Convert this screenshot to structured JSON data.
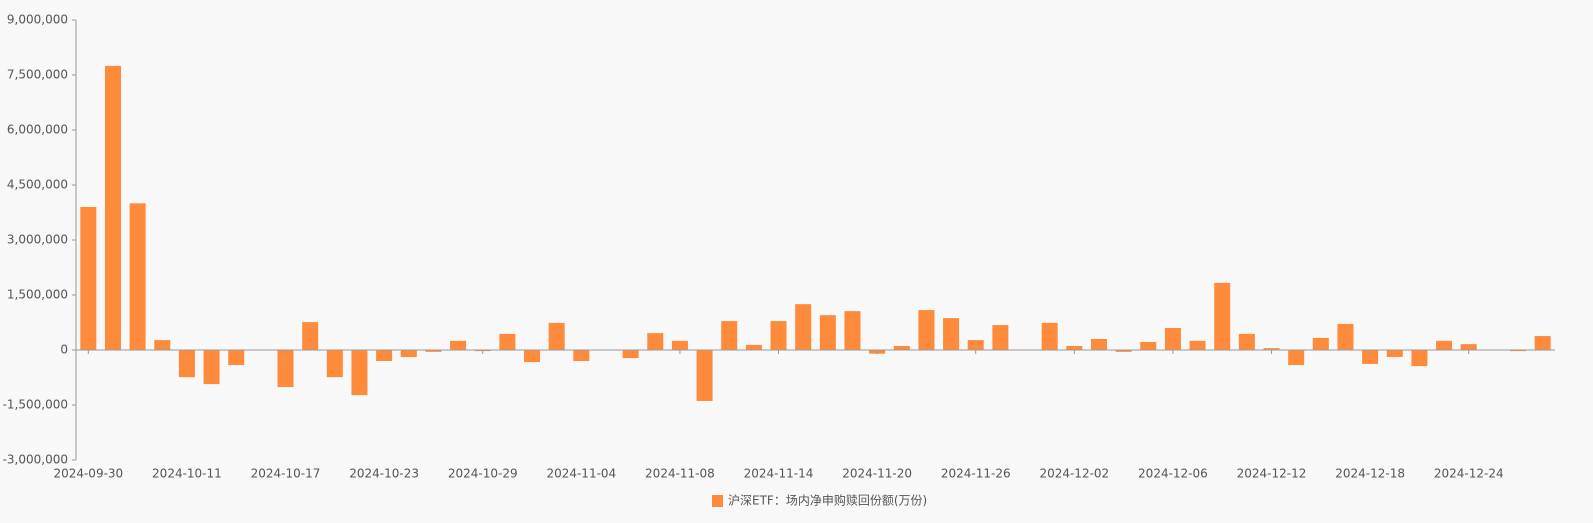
{
  "chart_data": {
    "type": "bar",
    "categories": [
      "2024-09-30",
      null,
      null,
      null,
      "2024-10-11",
      null,
      null,
      null,
      "2024-10-17",
      null,
      null,
      null,
      "2024-10-23",
      null,
      null,
      null,
      "2024-10-29",
      null,
      null,
      null,
      "2024-11-04",
      null,
      null,
      null,
      "2024-11-08",
      null,
      null,
      null,
      "2024-11-14",
      null,
      null,
      null,
      "2024-11-20",
      null,
      null,
      null,
      "2024-11-26",
      null,
      null,
      null,
      "2024-12-02",
      null,
      null,
      null,
      "2024-12-06",
      null,
      null,
      null,
      "2024-12-12",
      null,
      null,
      null,
      "2024-12-18",
      null,
      null,
      null,
      "2024-12-24",
      null,
      null,
      null
    ],
    "series": [
      {
        "name": "沪深ETF：场内净申购赎回份额(万份)",
        "color": "#fe8a3b",
        "values": [
          3900000,
          7750000,
          4000000,
          270000,
          -740000,
          -930000,
          -410000,
          null,
          -1010000,
          760000,
          -740000,
          -1230000,
          -300000,
          -190000,
          -50000,
          250000,
          -30000,
          440000,
          -330000,
          740000,
          -300000,
          null,
          -220000,
          460000,
          250000,
          -1390000,
          790000,
          140000,
          790000,
          1250000,
          950000,
          1060000,
          -100000,
          110000,
          1090000,
          870000,
          270000,
          680000,
          null,
          740000,
          110000,
          300000,
          -50000,
          220000,
          600000,
          250000,
          1830000,
          440000,
          50000,
          -410000,
          330000,
          710000,
          -380000,
          -190000,
          -440000,
          250000,
          160000,
          null,
          -30000,
          380000
        ]
      }
    ],
    "ylim": [
      -3000000,
      9000000
    ],
    "yticks": [
      {
        "value": -3000000,
        "label": "-3,000,000"
      },
      {
        "value": -1500000,
        "label": "-1,500,000"
      },
      0,
      {
        "value": 1500000,
        "label": "1,500,000"
      },
      {
        "value": 3000000,
        "label": "3,000,000"
      },
      {
        "value": 4500000,
        "label": "4,500,000"
      },
      {
        "value": 6000000,
        "label": "6,000,000"
      },
      {
        "value": 7500000,
        "label": "7,500,000"
      },
      {
        "value": 9000000,
        "label": "9,000,000"
      }
    ],
    "legend": "bottom"
  }
}
